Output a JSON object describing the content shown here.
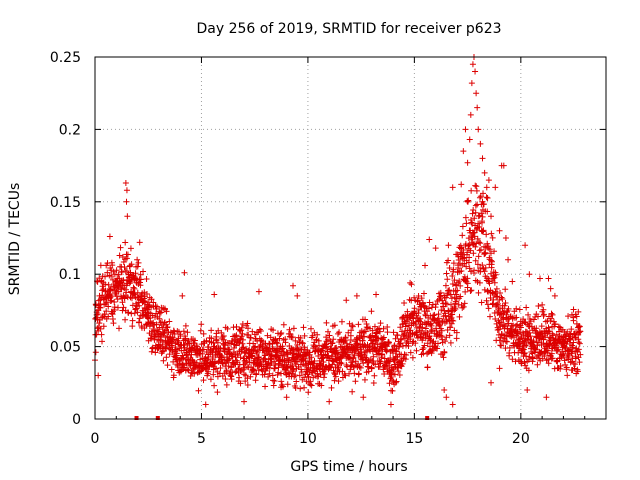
{
  "chart_data": {
    "type": "scatter",
    "title": "Day 256 of 2019, SRMTID for receiver p623",
    "xlabel": "GPS time / hours",
    "ylabel": "SRMTID / TECUs",
    "xlim": [
      0,
      24
    ],
    "ylim": [
      0,
      0.25
    ],
    "xticks": [
      0,
      5,
      10,
      15,
      20
    ],
    "xtick_labels": [
      "0",
      "5",
      "10",
      "15",
      "20"
    ],
    "yticks": [
      0,
      0.05,
      0.1,
      0.15,
      0.2,
      0.25
    ],
    "ytick_labels": [
      "0",
      "0.05",
      "0.1",
      "0.15",
      "0.2",
      "0.25"
    ],
    "grid": true,
    "marker": "+",
    "series": [
      {
        "name": "SRMTID",
        "color": "#dd0000",
        "profile": [
          {
            "x": 0.0,
            "low": 0.03,
            "high": 0.105
          },
          {
            "x": 0.5,
            "low": 0.055,
            "high": 0.115
          },
          {
            "x": 1.0,
            "low": 0.065,
            "high": 0.115
          },
          {
            "x": 1.5,
            "low": 0.065,
            "high": 0.125
          },
          {
            "x": 2.0,
            "low": 0.06,
            "high": 0.115
          },
          {
            "x": 2.5,
            "low": 0.045,
            "high": 0.1
          },
          {
            "x": 3.0,
            "low": 0.035,
            "high": 0.085
          },
          {
            "x": 3.5,
            "low": 0.03,
            "high": 0.075
          },
          {
            "x": 4.0,
            "low": 0.025,
            "high": 0.07
          },
          {
            "x": 5.0,
            "low": 0.018,
            "high": 0.065
          },
          {
            "x": 6.0,
            "low": 0.02,
            "high": 0.07
          },
          {
            "x": 8.0,
            "low": 0.02,
            "high": 0.07
          },
          {
            "x": 10.0,
            "low": 0.018,
            "high": 0.065
          },
          {
            "x": 12.0,
            "low": 0.02,
            "high": 0.07
          },
          {
            "x": 13.5,
            "low": 0.025,
            "high": 0.075
          },
          {
            "x": 14.0,
            "low": 0.015,
            "high": 0.06
          },
          {
            "x": 14.5,
            "low": 0.03,
            "high": 0.085
          },
          {
            "x": 15.0,
            "low": 0.04,
            "high": 0.095
          },
          {
            "x": 16.0,
            "low": 0.03,
            "high": 0.09
          },
          {
            "x": 17.0,
            "low": 0.05,
            "high": 0.13
          },
          {
            "x": 17.5,
            "low": 0.07,
            "high": 0.17
          },
          {
            "x": 18.0,
            "low": 0.08,
            "high": 0.19
          },
          {
            "x": 18.5,
            "low": 0.06,
            "high": 0.15
          },
          {
            "x": 19.0,
            "low": 0.045,
            "high": 0.1
          },
          {
            "x": 19.5,
            "low": 0.035,
            "high": 0.085
          },
          {
            "x": 20.0,
            "low": 0.03,
            "high": 0.08
          },
          {
            "x": 21.0,
            "low": 0.03,
            "high": 0.085
          },
          {
            "x": 22.0,
            "low": 0.025,
            "high": 0.075
          },
          {
            "x": 22.8,
            "low": 0.03,
            "high": 0.075
          }
        ],
        "outliers": [
          {
            "x": 1.45,
            "y": 0.163
          },
          {
            "x": 1.5,
            "y": 0.158
          },
          {
            "x": 1.48,
            "y": 0.15
          },
          {
            "x": 1.52,
            "y": 0.14
          },
          {
            "x": 0.7,
            "y": 0.126
          },
          {
            "x": 2.1,
            "y": 0.122
          },
          {
            "x": 4.2,
            "y": 0.101
          },
          {
            "x": 4.1,
            "y": 0.085
          },
          {
            "x": 5.6,
            "y": 0.086
          },
          {
            "x": 7.7,
            "y": 0.088
          },
          {
            "x": 9.3,
            "y": 0.092
          },
          {
            "x": 9.5,
            "y": 0.085
          },
          {
            "x": 11.8,
            "y": 0.082
          },
          {
            "x": 12.3,
            "y": 0.085
          },
          {
            "x": 13.2,
            "y": 0.086
          },
          {
            "x": 14.8,
            "y": 0.094
          },
          {
            "x": 15.5,
            "y": 0.106
          },
          {
            "x": 15.7,
            "y": 0.124
          },
          {
            "x": 16.0,
            "y": 0.118
          },
          {
            "x": 16.6,
            "y": 0.12
          },
          {
            "x": 16.8,
            "y": 0.16
          },
          {
            "x": 17.2,
            "y": 0.162
          },
          {
            "x": 17.3,
            "y": 0.185
          },
          {
            "x": 17.4,
            "y": 0.2
          },
          {
            "x": 17.5,
            "y": 0.177
          },
          {
            "x": 17.6,
            "y": 0.193
          },
          {
            "x": 17.65,
            "y": 0.21
          },
          {
            "x": 17.7,
            "y": 0.232
          },
          {
            "x": 17.75,
            "y": 0.245
          },
          {
            "x": 17.8,
            "y": 0.25
          },
          {
            "x": 17.85,
            "y": 0.24
          },
          {
            "x": 17.9,
            "y": 0.225
          },
          {
            "x": 17.95,
            "y": 0.215
          },
          {
            "x": 18.0,
            "y": 0.2
          },
          {
            "x": 18.1,
            "y": 0.19
          },
          {
            "x": 18.2,
            "y": 0.18
          },
          {
            "x": 18.3,
            "y": 0.17
          },
          {
            "x": 18.4,
            "y": 0.16
          },
          {
            "x": 18.5,
            "y": 0.165
          },
          {
            "x": 18.2,
            "y": 0.15
          },
          {
            "x": 18.6,
            "y": 0.14
          },
          {
            "x": 18.8,
            "y": 0.16
          },
          {
            "x": 19.1,
            "y": 0.175
          },
          {
            "x": 19.2,
            "y": 0.175
          },
          {
            "x": 19.0,
            "y": 0.13
          },
          {
            "x": 19.3,
            "y": 0.125
          },
          {
            "x": 19.4,
            "y": 0.11
          },
          {
            "x": 19.6,
            "y": 0.095
          },
          {
            "x": 20.2,
            "y": 0.12
          },
          {
            "x": 20.4,
            "y": 0.1
          },
          {
            "x": 20.9,
            "y": 0.097
          },
          {
            "x": 21.3,
            "y": 0.097
          },
          {
            "x": 21.4,
            "y": 0.09
          },
          {
            "x": 22.4,
            "y": 0.072
          },
          {
            "x": 22.7,
            "y": 0.074
          },
          {
            "x": 21.6,
            "y": 0.085
          },
          {
            "x": 18.6,
            "y": 0.025
          },
          {
            "x": 19.0,
            "y": 0.035
          },
          {
            "x": 16.4,
            "y": 0.02
          },
          {
            "x": 16.5,
            "y": 0.015
          },
          {
            "x": 16.8,
            "y": 0.01
          },
          {
            "x": 20.3,
            "y": 0.02
          },
          {
            "x": 21.2,
            "y": 0.015
          },
          {
            "x": 0.15,
            "y": 0.03
          },
          {
            "x": 5.2,
            "y": 0.01
          },
          {
            "x": 7.0,
            "y": 0.012
          },
          {
            "x": 9.0,
            "y": 0.015
          },
          {
            "x": 11.0,
            "y": 0.012
          },
          {
            "x": 12.6,
            "y": 0.015
          },
          {
            "x": 13.9,
            "y": 0.01
          }
        ],
        "gap_markers": [
          1.95,
          2.95,
          15.6
        ]
      }
    ]
  }
}
